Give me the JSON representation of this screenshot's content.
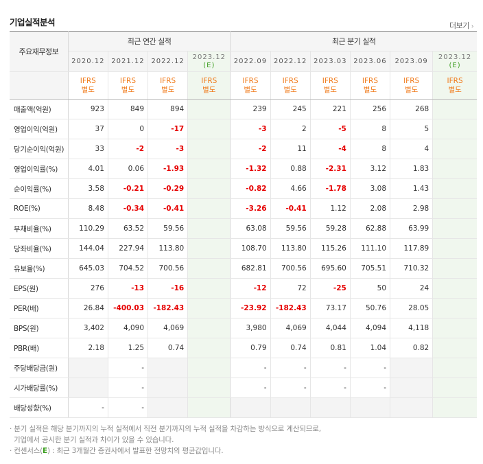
{
  "section_title": "기업실적분석",
  "more_label": "더보기",
  "header": {
    "row_label": "주요재무정보",
    "annual_group": "최근 연간 실적",
    "quarter_group": "최근 분기 실적",
    "annual_periods": [
      "2020.12",
      "2021.12",
      "2022.12",
      "2023.12"
    ],
    "annual_cons_mark": "(E)",
    "quarter_periods": [
      "2022.09",
      "2022.12",
      "2023.03",
      "2023.06",
      "2023.09",
      "2023.12"
    ],
    "quarter_cons_mark": "(E)",
    "ifrs_line1": "IFRS",
    "ifrs_line2": "별도"
  },
  "rows": [
    {
      "label": "매출액(억원)",
      "annual": [
        "923",
        "849",
        "894",
        ""
      ],
      "quarter": [
        "239",
        "245",
        "221",
        "256",
        "268",
        ""
      ]
    },
    {
      "label": "영업이익(억원)",
      "annual": [
        "37",
        "0",
        "-17",
        ""
      ],
      "quarter": [
        "-3",
        "2",
        "-5",
        "8",
        "5",
        ""
      ]
    },
    {
      "label": "당기순이익(억원)",
      "annual": [
        "33",
        "-2",
        "-3",
        ""
      ],
      "quarter": [
        "-2",
        "11",
        "-4",
        "8",
        "4",
        ""
      ]
    },
    {
      "label": "영업이익률(%)",
      "annual": [
        "4.01",
        "0.06",
        "-1.93",
        ""
      ],
      "quarter": [
        "-1.32",
        "0.88",
        "-2.31",
        "3.12",
        "1.83",
        ""
      ]
    },
    {
      "label": "순이익률(%)",
      "annual": [
        "3.58",
        "-0.21",
        "-0.29",
        ""
      ],
      "quarter": [
        "-0.82",
        "4.66",
        "-1.78",
        "3.08",
        "1.43",
        ""
      ]
    },
    {
      "label": "ROE(%)",
      "annual": [
        "8.48",
        "-0.34",
        "-0.41",
        ""
      ],
      "quarter": [
        "-3.26",
        "-0.41",
        "1.12",
        "2.08",
        "2.98",
        ""
      ]
    },
    {
      "label": "부채비율(%)",
      "annual": [
        "110.29",
        "63.52",
        "59.56",
        ""
      ],
      "quarter": [
        "63.08",
        "59.56",
        "59.28",
        "62.88",
        "63.99",
        ""
      ]
    },
    {
      "label": "당좌비율(%)",
      "annual": [
        "144.04",
        "227.94",
        "113.80",
        ""
      ],
      "quarter": [
        "108.70",
        "113.80",
        "115.26",
        "111.10",
        "117.89",
        ""
      ]
    },
    {
      "label": "유보율(%)",
      "annual": [
        "645.03",
        "704.52",
        "700.56",
        ""
      ],
      "quarter": [
        "682.81",
        "700.56",
        "695.60",
        "705.51",
        "710.32",
        ""
      ]
    },
    {
      "label": "EPS(원)",
      "annual": [
        "276",
        "-13",
        "-16",
        ""
      ],
      "quarter": [
        "-12",
        "72",
        "-25",
        "50",
        "24",
        ""
      ]
    },
    {
      "label": "PER(배)",
      "annual": [
        "26.84",
        "-400.03",
        "-182.43",
        ""
      ],
      "quarter": [
        "-23.92",
        "-182.43",
        "73.17",
        "50.76",
        "28.05",
        ""
      ]
    },
    {
      "label": "BPS(원)",
      "annual": [
        "3,402",
        "4,090",
        "4,069",
        ""
      ],
      "quarter": [
        "3,980",
        "4,069",
        "4,044",
        "4,094",
        "4,118",
        ""
      ]
    },
    {
      "label": "PBR(배)",
      "annual": [
        "2.18",
        "1.25",
        "0.74",
        ""
      ],
      "quarter": [
        "0.79",
        "0.74",
        "0.81",
        "1.04",
        "0.82",
        ""
      ]
    },
    {
      "label": "주당배당금(원)",
      "annual": [
        "",
        "-",
        "",
        ""
      ],
      "quarter": [
        "-",
        "-",
        "-",
        "-",
        "",
        ""
      ]
    },
    {
      "label": "시가배당률(%)",
      "annual": [
        "",
        "-",
        "",
        ""
      ],
      "quarter": [
        "-",
        "-",
        "-",
        "-",
        "",
        ""
      ]
    },
    {
      "label": "배당성향(%)",
      "annual": [
        "-",
        "-",
        "",
        ""
      ],
      "quarter": [
        "",
        "",
        "",
        "",
        "",
        ""
      ]
    }
  ],
  "notes": {
    "line1": "· 분기 실적은 해당 분기까지의 누적 실적에서 직전 분기까지의 누적 실적을 차감하는 방식으로 계산되므로,",
    "line2": "기업에서 공시한 분기 실적과 차이가 있을 수 있습니다.",
    "line3_prefix": "· 컨센서스(",
    "line3_mark": "E",
    "line3_suffix": ") : 최근 3개월간 증권사에서 발표한 전망치의 평균값입니다."
  },
  "colors": {
    "negative": "#e60000",
    "ifrs": "#f07a1a",
    "consensus_bg": "#f0f7ee",
    "consensus_mark": "#3a9d1e"
  }
}
